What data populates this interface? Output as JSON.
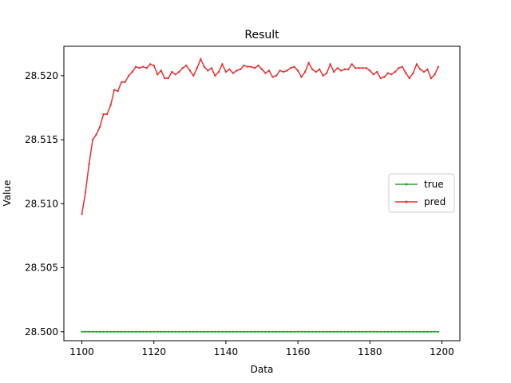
{
  "chart_data": {
    "type": "line",
    "title": "Result",
    "xlabel": "Data",
    "ylabel": "Value",
    "xlim": [
      1095,
      1205
    ],
    "ylim": [
      28.4993,
      28.5223
    ],
    "xticks": [
      1100,
      1120,
      1140,
      1160,
      1180,
      1200
    ],
    "yticks": [
      28.5,
      28.505,
      28.51,
      28.515,
      28.52
    ],
    "ytick_labels": [
      "28.500",
      "28.505",
      "28.510",
      "28.515",
      "28.520"
    ],
    "legend_position": "center-right",
    "grid": false,
    "series": [
      {
        "name": "true",
        "color": "#2ca02c",
        "marker": "point",
        "x": [
          1100,
          1101,
          1102,
          1103,
          1104,
          1105,
          1106,
          1107,
          1108,
          1109,
          1110,
          1111,
          1112,
          1113,
          1114,
          1115,
          1116,
          1117,
          1118,
          1119,
          1120,
          1121,
          1122,
          1123,
          1124,
          1125,
          1126,
          1127,
          1128,
          1129,
          1130,
          1131,
          1132,
          1133,
          1134,
          1135,
          1136,
          1137,
          1138,
          1139,
          1140,
          1141,
          1142,
          1143,
          1144,
          1145,
          1146,
          1147,
          1148,
          1149,
          1150,
          1151,
          1152,
          1153,
          1154,
          1155,
          1156,
          1157,
          1158,
          1159,
          1160,
          1161,
          1162,
          1163,
          1164,
          1165,
          1166,
          1167,
          1168,
          1169,
          1170,
          1171,
          1172,
          1173,
          1174,
          1175,
          1176,
          1177,
          1178,
          1179,
          1180,
          1181,
          1182,
          1183,
          1184,
          1185,
          1186,
          1187,
          1188,
          1189,
          1190,
          1191,
          1192,
          1193,
          1194,
          1195,
          1196,
          1197,
          1198,
          1199
        ],
        "y": [
          28.5,
          28.5,
          28.5,
          28.5,
          28.5,
          28.5,
          28.5,
          28.5,
          28.5,
          28.5,
          28.5,
          28.5,
          28.5,
          28.5,
          28.5,
          28.5,
          28.5,
          28.5,
          28.5,
          28.5,
          28.5,
          28.5,
          28.5,
          28.5,
          28.5,
          28.5,
          28.5,
          28.5,
          28.5,
          28.5,
          28.5,
          28.5,
          28.5,
          28.5,
          28.5,
          28.5,
          28.5,
          28.5,
          28.5,
          28.5,
          28.5,
          28.5,
          28.5,
          28.5,
          28.5,
          28.5,
          28.5,
          28.5,
          28.5,
          28.5,
          28.5,
          28.5,
          28.5,
          28.5,
          28.5,
          28.5,
          28.5,
          28.5,
          28.5,
          28.5,
          28.5,
          28.5,
          28.5,
          28.5,
          28.5,
          28.5,
          28.5,
          28.5,
          28.5,
          28.5,
          28.5,
          28.5,
          28.5,
          28.5,
          28.5,
          28.5,
          28.5,
          28.5,
          28.5,
          28.5,
          28.5,
          28.5,
          28.5,
          28.5,
          28.5,
          28.5,
          28.5,
          28.5,
          28.5,
          28.5,
          28.5,
          28.5,
          28.5,
          28.5,
          28.5,
          28.5,
          28.5,
          28.5,
          28.5,
          28.5
        ]
      },
      {
        "name": "pred",
        "color": "#e8302e",
        "marker": "point",
        "x": [
          1100,
          1101,
          1102,
          1103,
          1104,
          1105,
          1106,
          1107,
          1108,
          1109,
          1110,
          1111,
          1112,
          1113,
          1114,
          1115,
          1116,
          1117,
          1118,
          1119,
          1120,
          1121,
          1122,
          1123,
          1124,
          1125,
          1126,
          1127,
          1128,
          1129,
          1130,
          1131,
          1132,
          1133,
          1134,
          1135,
          1136,
          1137,
          1138,
          1139,
          1140,
          1141,
          1142,
          1143,
          1144,
          1145,
          1146,
          1147,
          1148,
          1149,
          1150,
          1151,
          1152,
          1153,
          1154,
          1155,
          1156,
          1157,
          1158,
          1159,
          1160,
          1161,
          1162,
          1163,
          1164,
          1165,
          1166,
          1167,
          1168,
          1169,
          1170,
          1171,
          1172,
          1173,
          1174,
          1175,
          1176,
          1177,
          1178,
          1179,
          1180,
          1181,
          1182,
          1183,
          1184,
          1185,
          1186,
          1187,
          1188,
          1189,
          1190,
          1191,
          1192,
          1193,
          1194,
          1195,
          1196,
          1197,
          1198,
          1199
        ],
        "y": [
          28.5092,
          28.5109,
          28.5131,
          28.515,
          28.5154,
          28.516,
          28.517,
          28.517,
          28.5177,
          28.5189,
          28.5188,
          28.5195,
          28.5195,
          28.52,
          28.5203,
          28.5207,
          28.5206,
          28.5207,
          28.5206,
          28.5209,
          28.5208,
          28.5201,
          28.5204,
          28.5198,
          28.5198,
          28.5203,
          28.5201,
          28.5203,
          28.5206,
          28.5208,
          28.5204,
          28.52,
          28.5206,
          28.5213,
          28.5207,
          28.5204,
          28.5206,
          28.52,
          28.5203,
          28.5209,
          28.5203,
          28.5205,
          28.5202,
          28.5204,
          28.5205,
          28.5208,
          28.5207,
          28.5207,
          28.5206,
          28.5208,
          28.5205,
          28.5202,
          28.5204,
          28.5199,
          28.52,
          28.5204,
          28.5203,
          28.5204,
          28.5206,
          28.5207,
          28.5204,
          28.5199,
          28.5203,
          28.521,
          28.5205,
          28.5203,
          28.5205,
          28.52,
          28.5202,
          28.5209,
          28.5203,
          28.5206,
          28.5204,
          28.5205,
          28.5205,
          28.5209,
          28.5206,
          28.5206,
          28.5206,
          28.5206,
          28.5204,
          28.5201,
          28.5203,
          28.5198,
          28.5199,
          28.5202,
          28.5201,
          28.5203,
          28.5206,
          28.5207,
          28.5202,
          28.5198,
          28.5202,
          28.5209,
          28.5205,
          28.5203,
          28.5205,
          28.5198,
          28.5201,
          28.5207
        ]
      }
    ]
  }
}
